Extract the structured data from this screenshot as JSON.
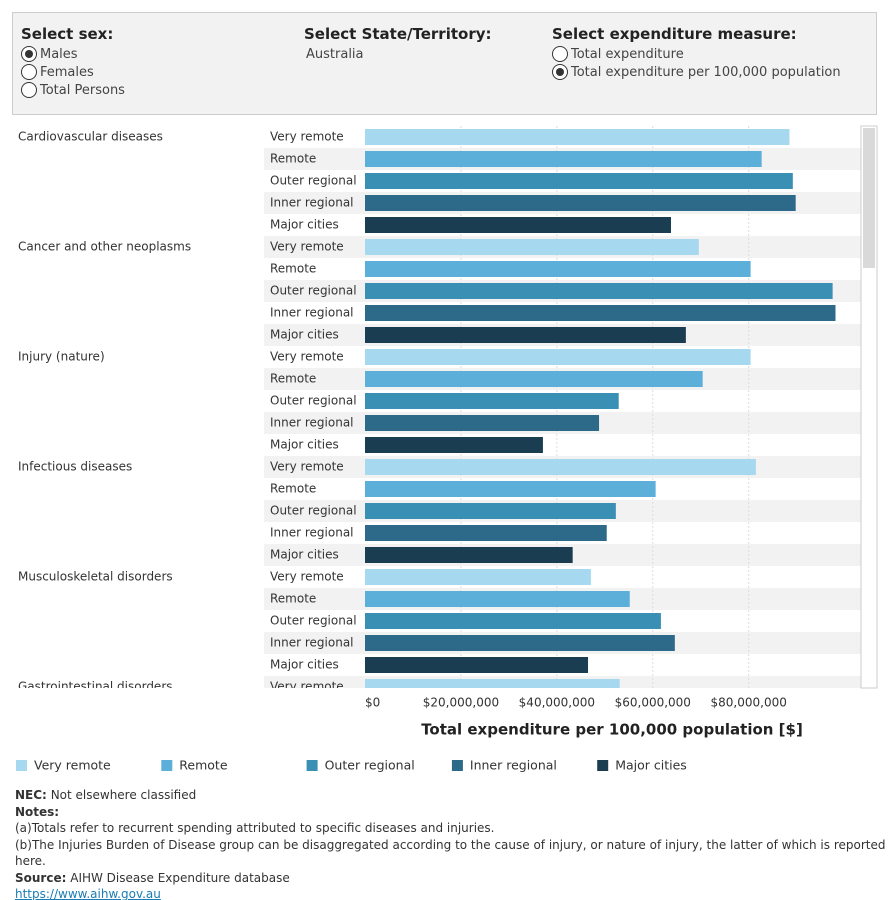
{
  "filters": {
    "sex": {
      "label": "Select sex:",
      "options": [
        "Males",
        "Females",
        "Total Persons"
      ],
      "selected": 0
    },
    "state": {
      "label": "Select State/Territory:",
      "value": "Australia"
    },
    "measure": {
      "label": "Select expenditure measure:",
      "options": [
        "Total expenditure",
        "Total expenditure per 100,000 population"
      ],
      "selected": 1
    }
  },
  "chart_data": {
    "type": "grouped-hbar",
    "x_label": "Total expenditure per 100,000 population [$]",
    "categories": [
      "Cardiovascular diseases",
      "Cancer and other neoplasms",
      "Injury (nature)",
      "Infectious diseases",
      "Musculoskeletal disorders",
      "Gastrointestinal disorders"
    ],
    "series": [
      {
        "name": "Very remote",
        "color": "#a6d8ef",
        "values": [
          88500000,
          69600000,
          80400000,
          81500000,
          47100000,
          53100000
        ]
      },
      {
        "name": "Remote",
        "color": "#5bafd9",
        "values": [
          82700000,
          80400000,
          70400000,
          60600000,
          55200000,
          null
        ]
      },
      {
        "name": "Outer regional",
        "color": "#3a8fb5",
        "values": [
          89200000,
          97500000,
          52900000,
          52300000,
          61700000,
          null
        ]
      },
      {
        "name": "Inner regional",
        "color": "#2d6a8a",
        "values": [
          89800000,
          98100000,
          48800000,
          50400000,
          64600000,
          null
        ]
      },
      {
        "name": "Major cities",
        "color": "#1b3d52",
        "values": [
          63800000,
          66900000,
          37100000,
          43300000,
          46500000,
          null
        ]
      }
    ],
    "xlim": [
      0,
      103000000
    ],
    "xticks": [
      {
        "value": 0,
        "label": "$0"
      },
      {
        "value": 20000000,
        "label": "$20,000,000"
      },
      {
        "value": 40000000,
        "label": "$40,000,000"
      },
      {
        "value": 60000000,
        "label": "$60,000,000"
      },
      {
        "value": 80000000,
        "label": "$80,000,000"
      }
    ],
    "grid": true
  },
  "notes": {
    "nec_label": "NEC:",
    "nec": "Not elsewhere classified",
    "heading": "Notes:",
    "items": [
      "(a)Totals refer to recurrent spending attributed to specific diseases and injuries.",
      "(b)The Injuries Burden of Disease group can be disaggregated according to the cause of injury, or nature of injury, the latter of which is reported here."
    ],
    "source_label": "Source:",
    "source": "AIHW Disease Expenditure database",
    "link": "https://www.aihw.gov.au"
  }
}
